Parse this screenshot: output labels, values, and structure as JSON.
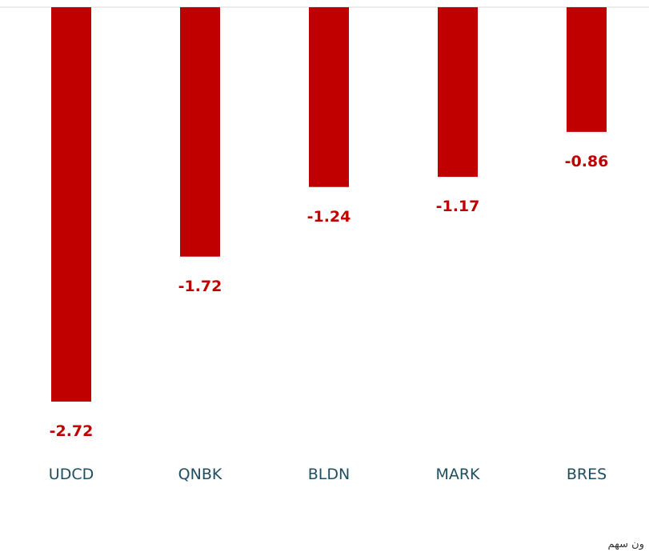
{
  "chart_data": {
    "type": "bar",
    "categories": [
      "UDCD",
      "QNBK",
      "BLDN",
      "MARK",
      "BRES"
    ],
    "values": [
      -2.72,
      -1.72,
      -1.24,
      -1.17,
      -0.86
    ],
    "data_labels": [
      "-2.72",
      "-1.72",
      "-1.24",
      "-1.17",
      "-0.86"
    ],
    "title": "",
    "xlabel": "",
    "ylabel": "",
    "ylim": [
      -2.72,
      0
    ],
    "grid": false,
    "legend": "none",
    "colors": {
      "bar": "#c00000",
      "label": "#c00000",
      "category": "#1f4e5f",
      "axis": "#d9d9d9"
    }
  },
  "footer": {
    "text": "ون سهم"
  }
}
